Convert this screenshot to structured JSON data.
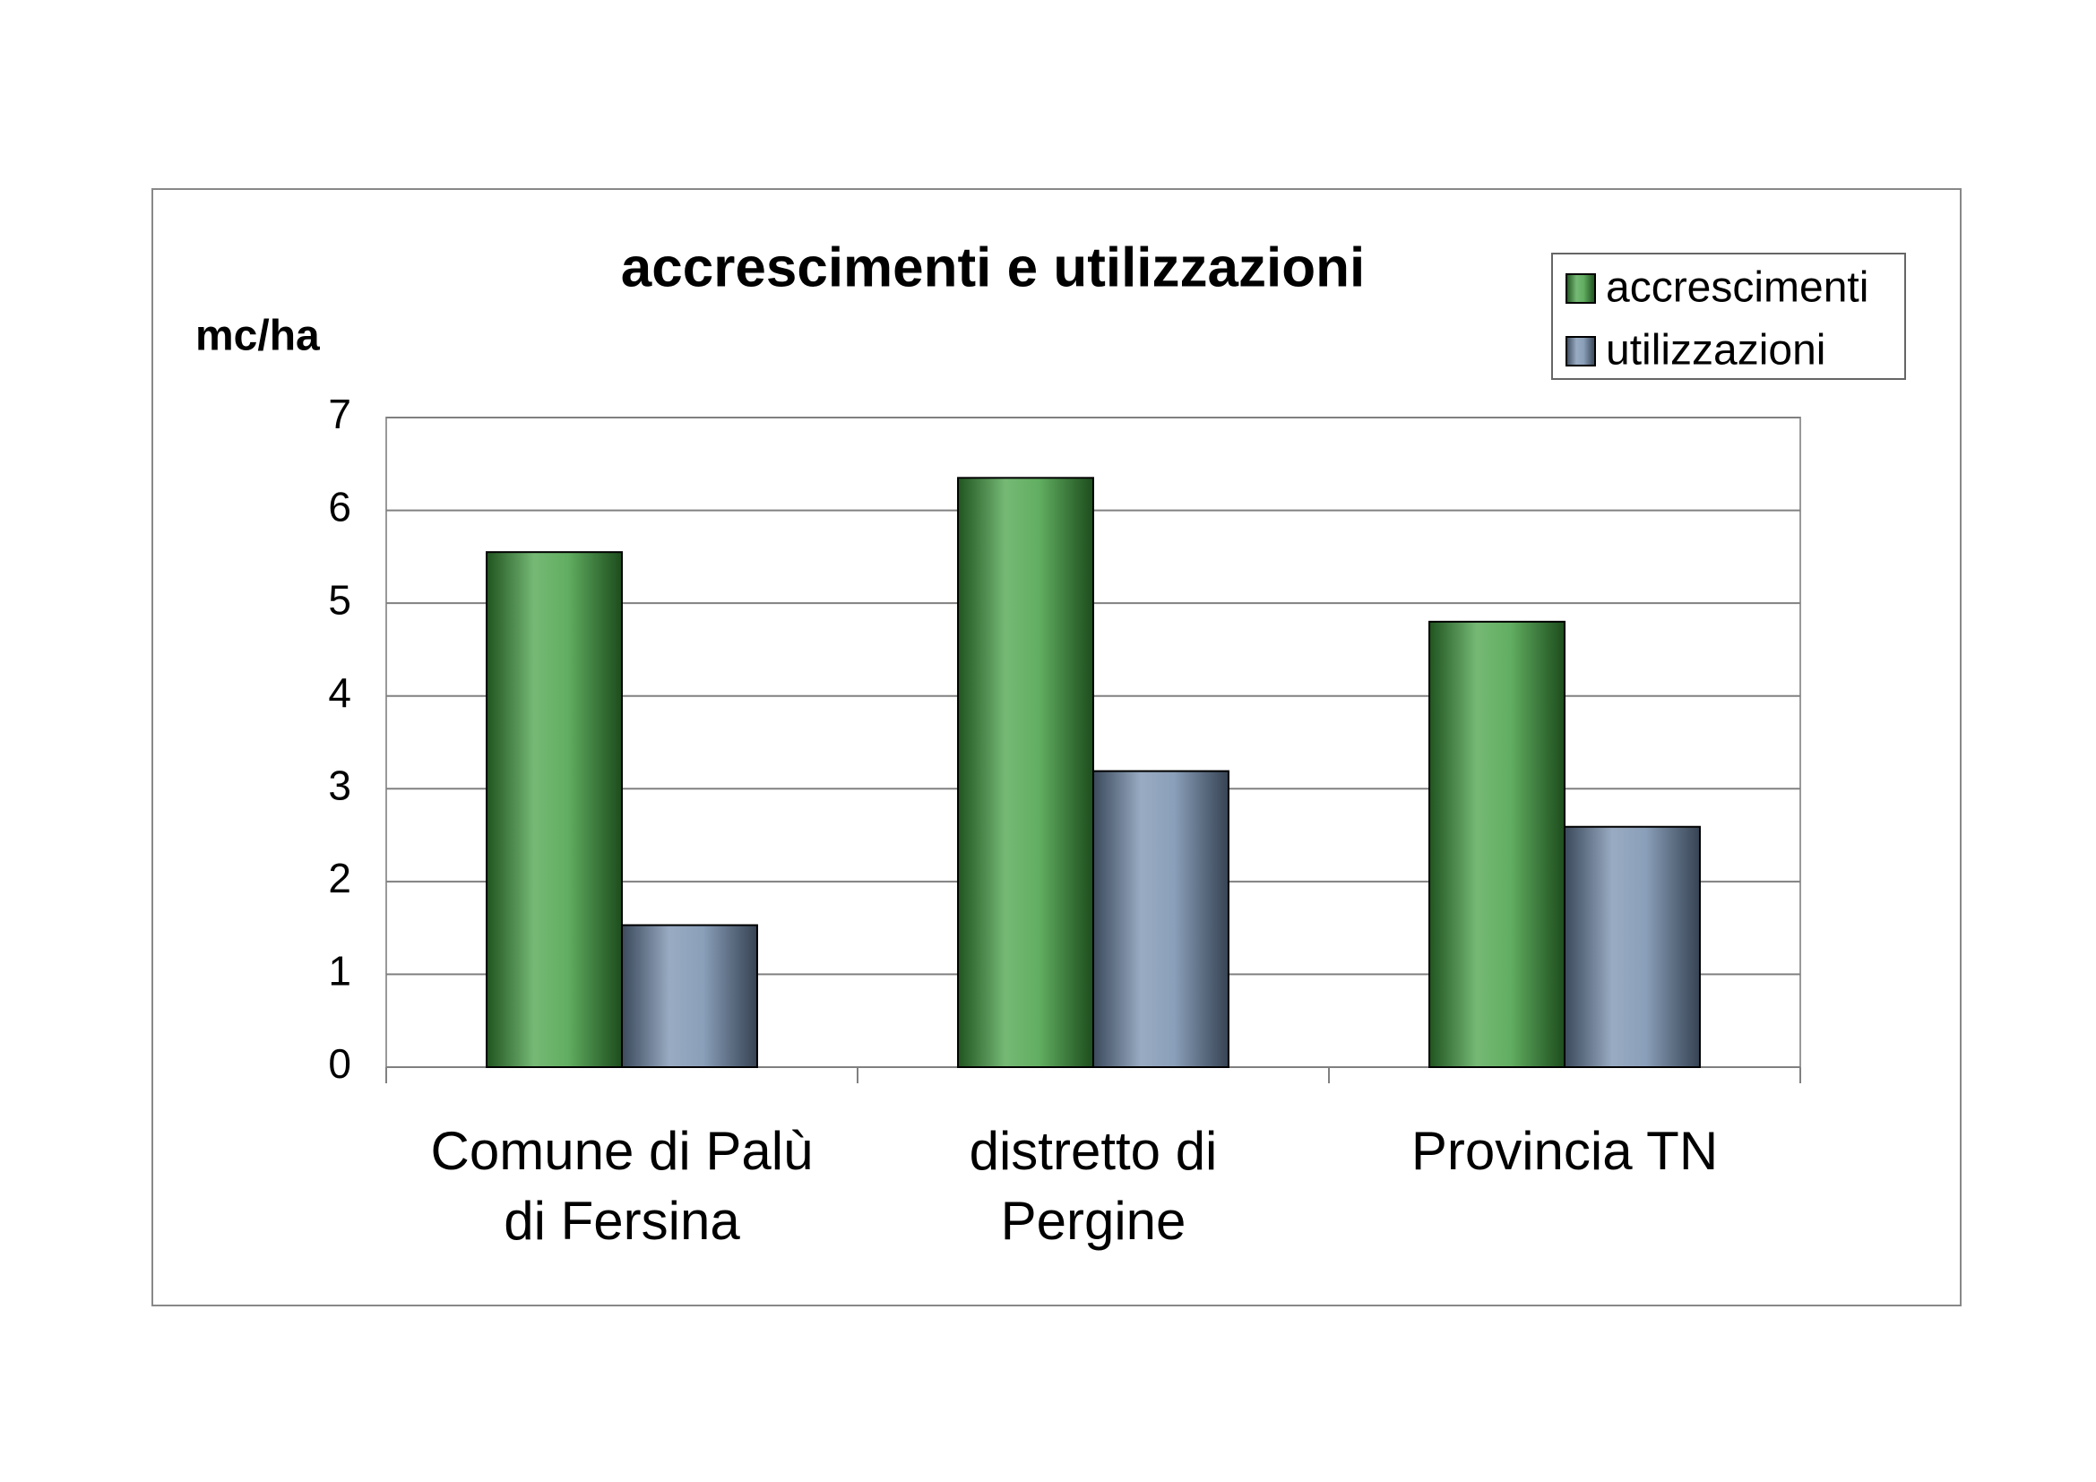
{
  "chart_data": {
    "type": "bar",
    "title": "accrescimenti e utilizzazioni",
    "y_label": "mc/ha",
    "categories": [
      "Comune di Palù di Fersina",
      "distretto di Pergine",
      "Provincia TN"
    ],
    "series": [
      {
        "name": "accrescimenti",
        "color": "#3a9a3a",
        "values": [
          5.55,
          6.35,
          4.8
        ]
      },
      {
        "name": "utilizzazioni",
        "color": "#6d87a8",
        "values": [
          1.53,
          3.19,
          2.59
        ]
      }
    ],
    "ylim": [
      0,
      7
    ],
    "yticks": [
      0,
      1,
      2,
      3,
      4,
      5,
      6,
      7
    ],
    "grid": true,
    "legend": "top-right"
  }
}
